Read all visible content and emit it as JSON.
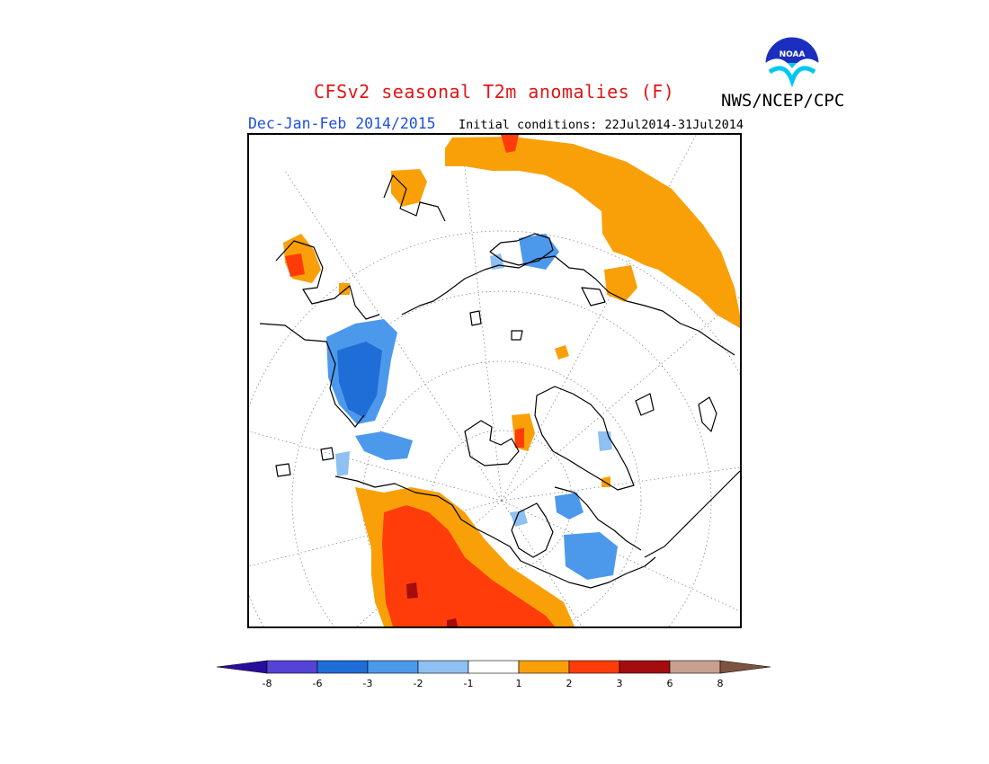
{
  "header": {
    "title": "CFSv2 seasonal T2m anomalies (F)",
    "agency": "NWS/NCEP/CPC",
    "season": "Dec-Jan-Feb 2014/2015",
    "initial_conditions": "Initial conditions: 22Jul2014-31Jul2014"
  },
  "logo": {
    "text": "NOAA",
    "icon": "noaa-logo-icon"
  },
  "map": {
    "projection": "north-polar-stereographic",
    "graticule": "dotted"
  },
  "colorbar": {
    "tick_labels": [
      "-8",
      "-6",
      "-3",
      "-2",
      "-1",
      "1",
      "2",
      "3",
      "6",
      "8"
    ],
    "colors": [
      "#2a0d9c",
      "#5443d4",
      "#1f6dd6",
      "#4c99ec",
      "#8ec0f2",
      "#ffffff",
      "#f9a008",
      "#ff3c0a",
      "#a40d0d",
      "#c7a090",
      "#7e5341"
    ]
  }
}
